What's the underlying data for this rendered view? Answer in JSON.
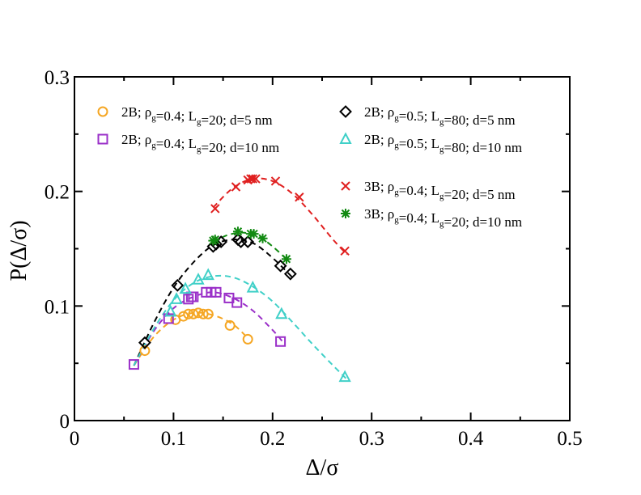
{
  "chart_data": {
    "type": "scatter",
    "title": "",
    "xlabel": "Δ/σ",
    "ylabel": "P(Δ/σ)",
    "xlim": [
      0,
      0.5
    ],
    "ylim": [
      0,
      0.3
    ],
    "xticks": [
      0,
      0.1,
      0.2,
      0.3,
      0.4,
      0.5
    ],
    "yticks": [
      0,
      0.1,
      0.2,
      0.3
    ],
    "xtick_labels": [
      "0",
      "0.1",
      "0.2",
      "0.3",
      "0.4",
      "0.5"
    ],
    "ytick_labels": [
      "0",
      "0.1",
      "0.2",
      "0.3"
    ],
    "grid": false,
    "legend_position": "top",
    "series": [
      {
        "id": "s1",
        "legend": {
          "pre": "2B; ρ",
          "s1": "g",
          "mid1": "=0.4; L",
          "s2": "g",
          "mid2": "=20; d=5 nm"
        },
        "marker": "circle",
        "color": "#f5a623",
        "x": [
          0.071,
          0.102,
          0.11,
          0.115,
          0.12,
          0.125,
          0.13,
          0.135,
          0.157,
          0.175
        ],
        "y": [
          0.061,
          0.088,
          0.091,
          0.093,
          0.093,
          0.094,
          0.093,
          0.093,
          0.083,
          0.071
        ],
        "fit_x": [
          0.06,
          0.08,
          0.1,
          0.12,
          0.14,
          0.16,
          0.175
        ],
        "fit_y": [
          0.048,
          0.073,
          0.088,
          0.094,
          0.092,
          0.084,
          0.072
        ]
      },
      {
        "id": "s2",
        "legend": {
          "pre": "2B; ρ",
          "s1": "g",
          "mid1": "=0.4; L",
          "s2": "g",
          "mid2": "=20; d=10 nm"
        },
        "marker": "square",
        "color": "#9a2fc8",
        "x": [
          0.06,
          0.095,
          0.115,
          0.118,
          0.12,
          0.133,
          0.138,
          0.143,
          0.156,
          0.164,
          0.208
        ],
        "y": [
          0.049,
          0.089,
          0.106,
          0.108,
          0.108,
          0.112,
          0.112,
          0.112,
          0.107,
          0.103,
          0.069
        ],
        "fit_x": [
          0.06,
          0.08,
          0.1,
          0.12,
          0.14,
          0.16,
          0.18,
          0.2,
          0.21
        ],
        "fit_y": [
          0.048,
          0.078,
          0.098,
          0.108,
          0.112,
          0.107,
          0.096,
          0.079,
          0.069
        ]
      },
      {
        "id": "s3",
        "legend": {
          "pre": "2B; ρ",
          "s1": "g",
          "mid1": "=0.5; L",
          "s2": "g",
          "mid2": "=80; d=5 nm"
        },
        "marker": "diamond",
        "color": "#000000",
        "x": [
          0.071,
          0.104,
          0.14,
          0.143,
          0.148,
          0.165,
          0.168,
          0.175,
          0.208,
          0.218
        ],
        "y": [
          0.068,
          0.118,
          0.152,
          0.154,
          0.156,
          0.158,
          0.156,
          0.156,
          0.135,
          0.128
        ],
        "fit_x": [
          0.06,
          0.08,
          0.1,
          0.12,
          0.14,
          0.16,
          0.18,
          0.2,
          0.22
        ],
        "fit_y": [
          0.048,
          0.085,
          0.116,
          0.138,
          0.153,
          0.158,
          0.155,
          0.142,
          0.125
        ]
      },
      {
        "id": "s4",
        "legend": {
          "pre": "2B; ρ",
          "s1": "g",
          "mid1": "=0.5; L",
          "s2": "g",
          "mid2": "=80; d=10 nm"
        },
        "marker": "triangle",
        "color": "#40d0c8",
        "x": [
          0.097,
          0.103,
          0.112,
          0.125,
          0.135,
          0.18,
          0.209,
          0.273
        ],
        "y": [
          0.095,
          0.106,
          0.115,
          0.123,
          0.127,
          0.116,
          0.093,
          0.038
        ],
        "fit_x": [
          0.06,
          0.08,
          0.1,
          0.12,
          0.14,
          0.16,
          0.18,
          0.2,
          0.22,
          0.24,
          0.26,
          0.275
        ],
        "fit_y": [
          0.048,
          0.08,
          0.105,
          0.12,
          0.126,
          0.125,
          0.117,
          0.104,
          0.086,
          0.067,
          0.049,
          0.036
        ]
      },
      {
        "id": "s5",
        "legend": {
          "pre": "3B; ρ",
          "s1": "g",
          "mid1": "=0.4; L",
          "s2": "g",
          "mid2": "=20; d=5 nm"
        },
        "marker": "x",
        "color": "#e02020",
        "x": [
          0.142,
          0.163,
          0.175,
          0.178,
          0.18,
          0.183,
          0.203,
          0.227,
          0.273
        ],
        "y": [
          0.185,
          0.204,
          0.21,
          0.211,
          0.211,
          0.211,
          0.209,
          0.195,
          0.148
        ],
        "fit_x": [
          0.14,
          0.16,
          0.18,
          0.2,
          0.22,
          0.24,
          0.26,
          0.275
        ],
        "fit_y": [
          0.186,
          0.203,
          0.211,
          0.209,
          0.198,
          0.18,
          0.159,
          0.145
        ]
      },
      {
        "id": "s6",
        "legend": {
          "pre": "3B; ρ",
          "s1": "g",
          "mid1": "=0.4; L",
          "s2": "g",
          "mid2": "=20; d=10 nm"
        },
        "marker": "asterisk",
        "color": "#128a12",
        "x": [
          0.14,
          0.142,
          0.165,
          0.178,
          0.181,
          0.19,
          0.214
        ],
        "y": [
          0.157,
          0.158,
          0.165,
          0.163,
          0.163,
          0.159,
          0.141
        ],
        "fit_x": [
          0.14,
          0.155,
          0.17,
          0.185,
          0.2,
          0.215
        ],
        "fit_y": [
          0.156,
          0.162,
          0.164,
          0.161,
          0.152,
          0.14
        ]
      }
    ]
  }
}
